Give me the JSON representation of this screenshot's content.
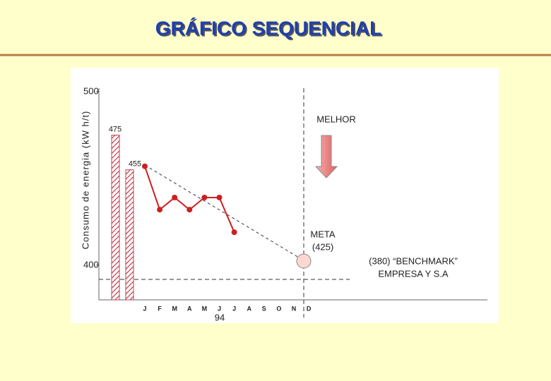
{
  "chart_data": {
    "type": "line",
    "title": "GRÁFICO SEQUENCIAL",
    "y_label": "Consumo de energia (kW h/t)",
    "categories": [
      "J",
      "F",
      "M",
      "A",
      "M",
      "J",
      "J",
      "A",
      "S",
      "O",
      "N",
      "D"
    ],
    "series": [
      {
        "color": "#cc2020",
        "values": [
          457,
          432,
          439,
          432,
          439,
          439,
          419,
          null,
          null,
          null,
          null,
          null
        ]
      }
    ],
    "bars": {
      "color": "#c04050",
      "values": [
        475,
        455
      ],
      "value_labels": [
        "475",
        "455"
      ]
    },
    "ylim": [
      380,
      500
    ],
    "yticks": [
      400,
      500
    ],
    "year_label": "94",
    "annotations": {
      "better": "MELHOR",
      "target": "META",
      "target_value": "(425)",
      "benchmark": "(380) “BENCHMARK”",
      "benchmark_source": "EMPRESA Y S.A"
    }
  }
}
